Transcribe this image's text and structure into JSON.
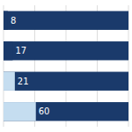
{
  "chart_data": {
    "type": "bar",
    "orientation": "horizontal",
    "categories": [
      null,
      null,
      null,
      null
    ],
    "series": [
      {
        "values": [
          232,
          232,
          232,
          232
        ],
        "color": "#1a3a6b"
      },
      {
        "values": [
          8,
          17,
          21,
          60
        ],
        "colors": [
          "#1a3a6b",
          "#1a3a6b",
          "#c5ddf0",
          "#c5ddf0"
        ],
        "data_labels": true
      }
    ],
    "xlim": [
      0,
      232
    ],
    "xticks": [
      0,
      58,
      116,
      174,
      232
    ],
    "grid": true,
    "tick_labels": false
  }
}
